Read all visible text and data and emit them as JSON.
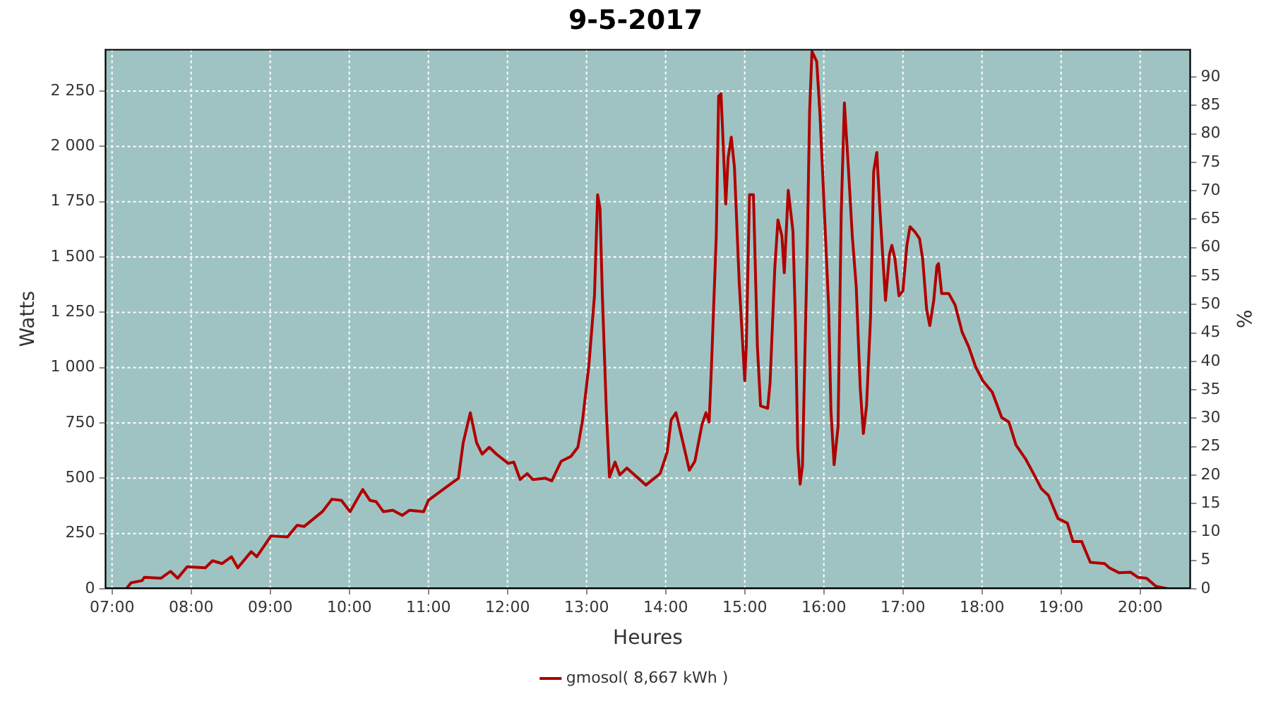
{
  "chart_data": {
    "type": "line",
    "title": "9-5-2017",
    "xlabel": "Heures",
    "ylabel": "Watts",
    "y2label": "%",
    "xlim": [
      6.91,
      20.64
    ],
    "xticks": [
      {
        "value": 7,
        "label": "07:00"
      },
      {
        "value": 8,
        "label": "08:00"
      },
      {
        "value": 9,
        "label": "09:00"
      },
      {
        "value": 10,
        "label": "10:00"
      },
      {
        "value": 11,
        "label": "11:00"
      },
      {
        "value": 12,
        "label": "12:00"
      },
      {
        "value": 13,
        "label": "13:00"
      },
      {
        "value": 14,
        "label": "14:00"
      },
      {
        "value": 15,
        "label": "15:00"
      },
      {
        "value": 16,
        "label": "16:00"
      },
      {
        "value": 17,
        "label": "17:00"
      },
      {
        "value": 18,
        "label": "18:00"
      },
      {
        "value": 19,
        "label": "19:00"
      },
      {
        "value": 20,
        "label": "20:00"
      }
    ],
    "ylim": [
      0,
      2440
    ],
    "yticks": [
      0,
      250,
      500,
      750,
      {
        "value": 1000,
        "label": "1 000"
      },
      {
        "value": 1250,
        "label": "1 250"
      },
      {
        "value": 1500,
        "label": "1 500"
      },
      {
        "value": 1750,
        "label": "1 750"
      },
      {
        "value": 2000,
        "label": "2 000"
      },
      {
        "value": 2250,
        "label": "2 250"
      }
    ],
    "y2lim": [
      0,
      94.9
    ],
    "y2ticks": [
      0,
      5,
      10,
      15,
      20,
      25,
      30,
      35,
      40,
      45,
      50,
      55,
      60,
      65,
      70,
      75,
      80,
      85,
      90
    ],
    "grid": true,
    "legend": "bottom",
    "marker": "none",
    "line_style": "solid",
    "series": [
      {
        "name": "gmosol( 8,667 kWh )",
        "color": "#b00000",
        "x": [
          7.18,
          7.24,
          7.38,
          7.41,
          7.62,
          7.74,
          7.83,
          7.95,
          8.18,
          8.27,
          8.39,
          8.51,
          8.59,
          8.76,
          8.83,
          9.01,
          9.22,
          9.34,
          9.43,
          9.66,
          9.78,
          9.9,
          10.01,
          10.17,
          10.26,
          10.34,
          10.43,
          10.55,
          10.67,
          10.76,
          10.94,
          11.0,
          11.2,
          11.38,
          11.44,
          11.53,
          11.61,
          11.68,
          11.77,
          11.86,
          12.01,
          12.08,
          12.16,
          12.25,
          12.32,
          12.48,
          12.56,
          12.68,
          12.8,
          12.89,
          12.95,
          13.03,
          13.1,
          13.14,
          13.17,
          13.2,
          13.25,
          13.29,
          13.36,
          13.42,
          13.51,
          13.66,
          13.75,
          13.93,
          14.02,
          14.07,
          14.13,
          14.22,
          14.3,
          14.37,
          14.46,
          14.51,
          14.55,
          14.58,
          14.64,
          14.67,
          14.7,
          14.76,
          14.79,
          14.83,
          14.87,
          14.93,
          15.0,
          15.02,
          15.06,
          15.11,
          15.16,
          15.2,
          15.29,
          15.32,
          15.38,
          15.42,
          15.47,
          15.5,
          15.55,
          15.61,
          15.64,
          15.67,
          15.7,
          15.73,
          15.79,
          15.82,
          15.85,
          15.91,
          15.95,
          16.0,
          16.06,
          16.09,
          16.13,
          16.18,
          16.22,
          16.26,
          16.31,
          16.36,
          16.41,
          16.46,
          16.5,
          16.54,
          16.59,
          16.63,
          16.67,
          16.71,
          16.74,
          16.78,
          16.83,
          16.86,
          16.9,
          16.95,
          17.0,
          17.05,
          17.09,
          17.15,
          17.21,
          17.25,
          17.3,
          17.34,
          17.39,
          17.43,
          17.45,
          17.49,
          17.58,
          17.66,
          17.75,
          17.83,
          17.92,
          18.01,
          18.13,
          18.25,
          18.34,
          18.43,
          18.55,
          18.66,
          18.75,
          18.84,
          18.96,
          19.08,
          19.15,
          19.26,
          19.37,
          19.55,
          19.61,
          19.73,
          19.88,
          19.97,
          20.08,
          20.2,
          20.35
        ],
        "values": [
          0,
          27,
          37,
          52,
          48,
          79,
          48,
          100,
          95,
          127,
          114,
          145,
          95,
          168,
          145,
          239,
          235,
          287,
          282,
          349,
          405,
          400,
          349,
          449,
          400,
          394,
          349,
          355,
          332,
          355,
          349,
          400,
          453,
          500,
          660,
          796,
          660,
          609,
          640,
          609,
          567,
          573,
          494,
          521,
          494,
          500,
          488,
          577,
          598,
          640,
          764,
          1013,
          1325,
          1782,
          1719,
          1325,
          806,
          505,
          573,
          515,
          546,
          498,
          469,
          521,
          619,
          764,
          796,
          660,
          536,
          577,
          743,
          796,
          754,
          1013,
          1595,
          2228,
          2238,
          1740,
          1948,
          2042,
          1906,
          1387,
          941,
          1096,
          1782,
          1782,
          1096,
          827,
          816,
          930,
          1449,
          1668,
          1595,
          1429,
          1802,
          1615,
          1221,
          640,
          473,
          556,
          1533,
          2156,
          2430,
          2384,
          2156,
          1761,
          1283,
          806,
          561,
          733,
          1699,
          2197,
          1906,
          1595,
          1366,
          910,
          702,
          827,
          1221,
          1886,
          1973,
          1709,
          1533,
          1304,
          1512,
          1553,
          1491,
          1325,
          1346,
          1553,
          1637,
          1615,
          1584,
          1491,
          1263,
          1190,
          1304,
          1460,
          1470,
          1335,
          1335,
          1283,
          1159,
          1096,
          1003,
          941,
          889,
          774,
          754,
          650,
          588,
          515,
          453,
          422,
          318,
          297,
          214,
          214,
          120,
          114,
          95,
          73,
          75,
          52,
          48,
          11,
          0
        ]
      }
    ]
  }
}
